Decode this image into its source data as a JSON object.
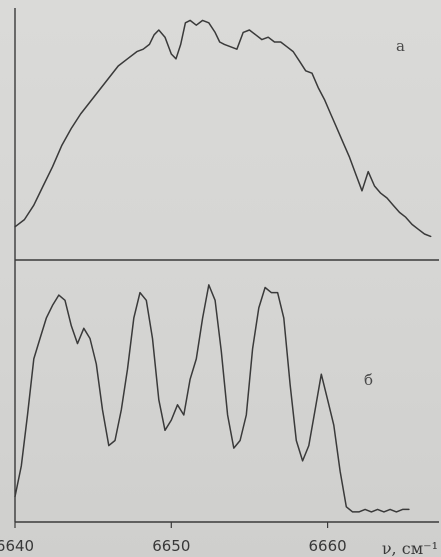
{
  "chart_data": [
    {
      "type": "line",
      "panel_label": "а",
      "xlim": [
        6640,
        6667
      ],
      "ylim": [
        0,
        1
      ],
      "grid": false,
      "series": [
        {
          "x": [
            6640.0,
            6640.6,
            6641.2,
            6641.8,
            6642.4,
            6643.0,
            6643.6,
            6644.2,
            6644.8,
            6645.4,
            6646.0,
            6646.6,
            6647.2,
            6647.8,
            6648.2,
            6648.6,
            6648.9,
            6649.2,
            6649.6,
            6650.0,
            6650.3,
            6650.6,
            6650.9,
            6651.2,
            6651.6,
            6652.0,
            6652.4,
            6652.8,
            6653.1,
            6653.4,
            6653.8,
            6654.2,
            6654.6,
            6655.0,
            6655.4,
            6655.8,
            6656.2,
            6656.6,
            6657.0,
            6657.4,
            6657.8,
            6658.2,
            6658.6,
            6659.0,
            6659.4,
            6659.8,
            6660.2,
            6660.6,
            6661.0,
            6661.4,
            6661.8,
            6662.2,
            6662.6,
            6663.0,
            6663.4,
            6663.8,
            6664.2,
            6664.6,
            6665.0,
            6665.4,
            6665.8,
            6666.2,
            6666.6
          ],
          "y": [
            0.13,
            0.16,
            0.22,
            0.3,
            0.38,
            0.47,
            0.54,
            0.6,
            0.65,
            0.7,
            0.75,
            0.8,
            0.83,
            0.86,
            0.87,
            0.89,
            0.93,
            0.95,
            0.92,
            0.85,
            0.83,
            0.89,
            0.98,
            0.99,
            0.97,
            0.99,
            0.98,
            0.94,
            0.9,
            0.89,
            0.88,
            0.87,
            0.94,
            0.95,
            0.93,
            0.91,
            0.92,
            0.9,
            0.9,
            0.88,
            0.86,
            0.82,
            0.78,
            0.77,
            0.71,
            0.66,
            0.6,
            0.54,
            0.48,
            0.42,
            0.35,
            0.28,
            0.36,
            0.3,
            0.27,
            0.25,
            0.22,
            0.19,
            0.17,
            0.14,
            0.12,
            0.1,
            0.09
          ]
        }
      ]
    },
    {
      "type": "line",
      "panel_label": "б",
      "xlim": [
        6640,
        6667
      ],
      "ylim": [
        0,
        1
      ],
      "grid": false,
      "xticks": [
        {
          "value": 6640,
          "label": "6640"
        },
        {
          "value": 6650,
          "label": "6650"
        },
        {
          "value": 6660,
          "label": "6660"
        }
      ],
      "xlabel": "ν, см⁻¹",
      "series": [
        {
          "x": [
            6640.0,
            6640.4,
            6640.8,
            6641.2,
            6641.6,
            6642.0,
            6642.4,
            6642.8,
            6643.2,
            6643.6,
            6644.0,
            6644.4,
            6644.8,
            6645.2,
            6645.6,
            6646.0,
            6646.4,
            6646.8,
            6647.2,
            6647.6,
            6648.0,
            6648.4,
            6648.8,
            6649.2,
            6649.6,
            6650.0,
            6650.4,
            6650.8,
            6651.2,
            6651.6,
            6652.0,
            6652.4,
            6652.8,
            6653.2,
            6653.6,
            6654.0,
            6654.4,
            6654.8,
            6655.2,
            6655.6,
            6656.0,
            6656.4,
            6656.8,
            6657.2,
            6657.6,
            6658.0,
            6658.4,
            6658.8,
            6659.2,
            6659.6,
            6660.0,
            6660.4,
            6660.8,
            6661.2,
            6661.6,
            6662.0,
            6662.4,
            6662.8,
            6663.2,
            6663.6,
            6664.0,
            6664.4,
            6664.8,
            6665.2
          ],
          "y": [
            0.08,
            0.2,
            0.4,
            0.62,
            0.7,
            0.78,
            0.83,
            0.87,
            0.85,
            0.75,
            0.68,
            0.74,
            0.7,
            0.6,
            0.42,
            0.28,
            0.3,
            0.42,
            0.58,
            0.78,
            0.88,
            0.85,
            0.7,
            0.46,
            0.34,
            0.38,
            0.44,
            0.4,
            0.54,
            0.62,
            0.78,
            0.91,
            0.85,
            0.65,
            0.4,
            0.27,
            0.3,
            0.4,
            0.66,
            0.82,
            0.9,
            0.88,
            0.88,
            0.78,
            0.52,
            0.3,
            0.22,
            0.28,
            0.42,
            0.56,
            0.46,
            0.36,
            0.18,
            0.04,
            0.02,
            0.02,
            0.03,
            0.02,
            0.03,
            0.02,
            0.03,
            0.02,
            0.03,
            0.03
          ]
        }
      ]
    }
  ],
  "colors": {
    "background": "#d6d6d4",
    "line": "#3a3a3a",
    "axis": "#3a3a3a",
    "text": "#383838"
  }
}
